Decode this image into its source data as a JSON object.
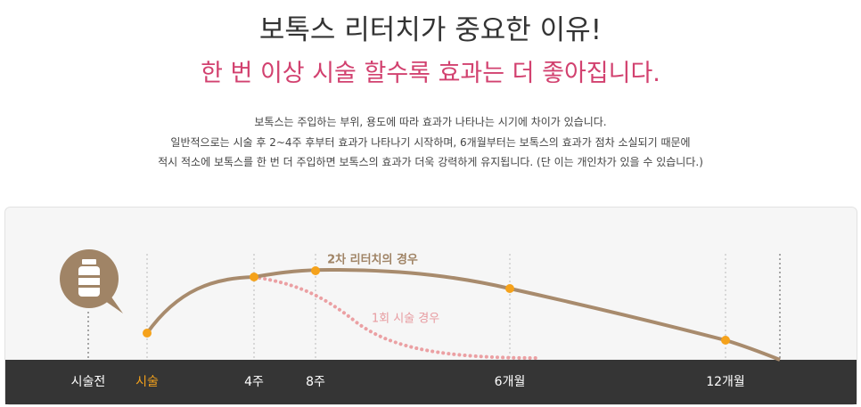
{
  "header": {
    "title": "보톡스 리터치가 중요한 이유!",
    "subtitle": "한 번 이상 시술 할수록 효과는 더 좋아집니다."
  },
  "description": [
    "보톡스는 주입하는 부위, 용도에 따라 효과가 나타나는 시기에 차이가 있습니다.",
    "일반적으로는 시술 후 2~4주 후부터 효과가 나타나기 시작하며, 6개월부터는 보톡스의 효과가 점차 소실되기 때문에",
    "적시 적소에 보톡스를 한 번 더 주입하면 보톡스의 효과가 더욱 강력하게 유지됩니다. (단 이는 개인차가 있을 수 있습니다.)"
  ],
  "diagram": {
    "curve_labels": [
      "2차 리터치의 경우",
      "1회 시술 경우"
    ],
    "timeline": [
      "시술전",
      "시술",
      "4주",
      "8주",
      "6개월",
      "12개월"
    ]
  }
}
